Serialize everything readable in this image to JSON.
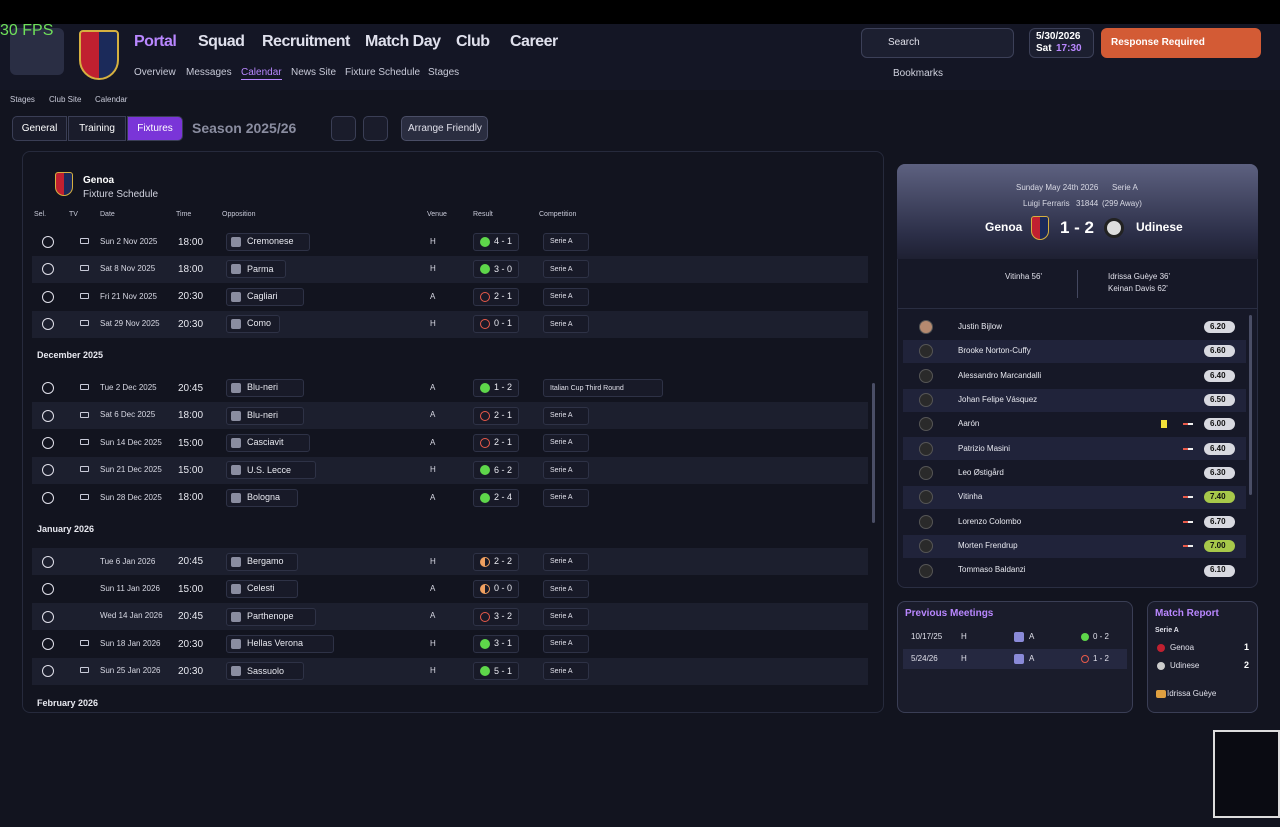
{
  "fps": "30 FPS",
  "nav": {
    "menus": [
      "Portal",
      "Squad",
      "Recruitment",
      "Match Day",
      "Club",
      "Career"
    ],
    "submenu": [
      "Overview",
      "Messages",
      "Calendar",
      "News Site",
      "Fixture Schedule",
      "Stages"
    ]
  },
  "toolbar": {
    "search": "Search",
    "date": "5/30/2026",
    "day": "Sat",
    "time": "17:30",
    "response": "Response Required",
    "bookmarks": "Bookmarks"
  },
  "breadcrumb": [
    "Stages",
    "Club Site",
    "Calendar"
  ],
  "tabs": [
    "General",
    "Training",
    "Fixtures"
  ],
  "season": "Season 2025/26",
  "arrange": "Arrange Friendly",
  "schedule": {
    "team": "Genoa",
    "subtitle": "Fixture Schedule",
    "columns": [
      "Sel.",
      "TV",
      "Date",
      "Time",
      "Opposition",
      "Venue",
      "Result",
      "Competition"
    ],
    "groups": [
      {
        "rows": [
          {
            "date": "Sun 2 Nov 2025",
            "time": "18:00",
            "opposition": "Cremonese",
            "venue": "H",
            "result": "4 - 1",
            "competition": "Serie A",
            "tv": true
          },
          {
            "date": "Sat 8 Nov 2025",
            "time": "18:00",
            "opposition": "Parma",
            "venue": "H",
            "result": "3 - 0",
            "competition": "Serie A",
            "tv": true
          },
          {
            "date": "Fri 21 Nov 2025",
            "time": "20:30",
            "opposition": "Cagliari",
            "venue": "A",
            "result": "2 - 1",
            "competition": "Serie A",
            "tv": true
          },
          {
            "date": "Sat 29 Nov 2025",
            "time": "20:30",
            "opposition": "Como",
            "venue": "H",
            "result": "0 - 1",
            "competition": "Serie A",
            "tv": true
          }
        ]
      },
      {
        "month": "December 2025",
        "rows": [
          {
            "date": "Tue 2 Dec 2025",
            "time": "20:45",
            "opposition": "Blu-neri",
            "venue": "A",
            "result": "1 - 2",
            "competition": "Italian Cup Third Round",
            "tv": true
          },
          {
            "date": "Sat 6 Dec 2025",
            "time": "18:00",
            "opposition": "Blu-neri",
            "venue": "A",
            "result": "2 - 1",
            "competition": "Serie A",
            "tv": true
          },
          {
            "date": "Sun 14 Dec 2025",
            "time": "15:00",
            "opposition": "Casciavit",
            "venue": "A",
            "result": "2 - 1",
            "competition": "Serie A",
            "tv": true
          },
          {
            "date": "Sun 21 Dec 2025",
            "time": "15:00",
            "opposition": "U.S. Lecce",
            "venue": "H",
            "result": "6 - 2",
            "competition": "Serie A",
            "tv": true
          },
          {
            "date": "Sun 28 Dec 2025",
            "time": "18:00",
            "opposition": "Bologna",
            "venue": "A",
            "result": "2 - 4",
            "competition": "Serie A",
            "tv": true
          }
        ]
      },
      {
        "month": "January 2026",
        "rows": [
          {
            "date": "Tue 6 Jan 2026",
            "time": "20:45",
            "opposition": "Bergamo",
            "venue": "H",
            "result": "2 - 2",
            "competition": "Serie A",
            "tv": false
          },
          {
            "date": "Sun 11 Jan 2026",
            "time": "15:00",
            "opposition": "Celesti",
            "venue": "A",
            "result": "0 - 0",
            "competition": "Serie A",
            "tv": false
          },
          {
            "date": "Wed 14 Jan 2026",
            "time": "20:45",
            "opposition": "Parthenope",
            "venue": "A",
            "result": "3 - 2",
            "competition": "Serie A",
            "tv": false
          },
          {
            "date": "Sun 18 Jan 2026",
            "time": "20:30",
            "opposition": "Hellas Verona",
            "venue": "H",
            "result": "3 - 1",
            "competition": "Serie A",
            "tv": true
          },
          {
            "date": "Sun 25 Jan 2026",
            "time": "20:30",
            "opposition": "Sassuolo",
            "venue": "H",
            "result": "5 - 1",
            "competition": "Serie A",
            "tv": true
          }
        ]
      },
      {
        "month": "February 2026",
        "rows": []
      }
    ]
  },
  "match": {
    "date": "Sunday May 24th 2026",
    "competition": "Serie A",
    "stadium": "Luigi Ferraris",
    "attendance": "31844",
    "away_fans": "(299 Away)",
    "home": "Genoa",
    "score": "1 - 2",
    "away": "Udinese",
    "home_scorers": [
      "Vitinha 56'"
    ],
    "away_scorers": [
      "Idrissa Guèye 36'",
      "Keinan Davis 62'"
    ],
    "players": [
      {
        "name": "Justin Bijlow",
        "rating": "6.20"
      },
      {
        "name": "Brooke Norton-Cuffy",
        "rating": "6.60"
      },
      {
        "name": "Alessandro Marcandalli",
        "rating": "6.40"
      },
      {
        "name": "Johan Felipe Vásquez",
        "rating": "6.50"
      },
      {
        "name": "Aarón",
        "rating": "6.00",
        "card": "yellow",
        "sub": true
      },
      {
        "name": "Patrizio Masini",
        "rating": "6.40",
        "sub": true
      },
      {
        "name": "Leo Østigård",
        "rating": "6.30"
      },
      {
        "name": "Vitinha",
        "rating": "7.40",
        "sub": true
      },
      {
        "name": "Lorenzo Colombo",
        "rating": "6.70",
        "sub": true
      },
      {
        "name": "Morten Frendrup",
        "rating": "7.00",
        "sub": true
      },
      {
        "name": "Tommaso Baldanzi",
        "rating": "6.10"
      }
    ]
  },
  "previous_meetings": {
    "title": "Previous Meetings",
    "rows": [
      [
        "10/17/25",
        "H",
        "A",
        "0 - 2"
      ],
      [
        "5/24/26",
        "H",
        "A",
        "1 - 2"
      ]
    ]
  },
  "match_report": {
    "title": "Match Report",
    "competition": "Serie A",
    "teams": [
      [
        "Genoa",
        "1"
      ],
      [
        "Udinese",
        "2"
      ]
    ],
    "player_of_match": "Idrissa Guèye"
  }
}
